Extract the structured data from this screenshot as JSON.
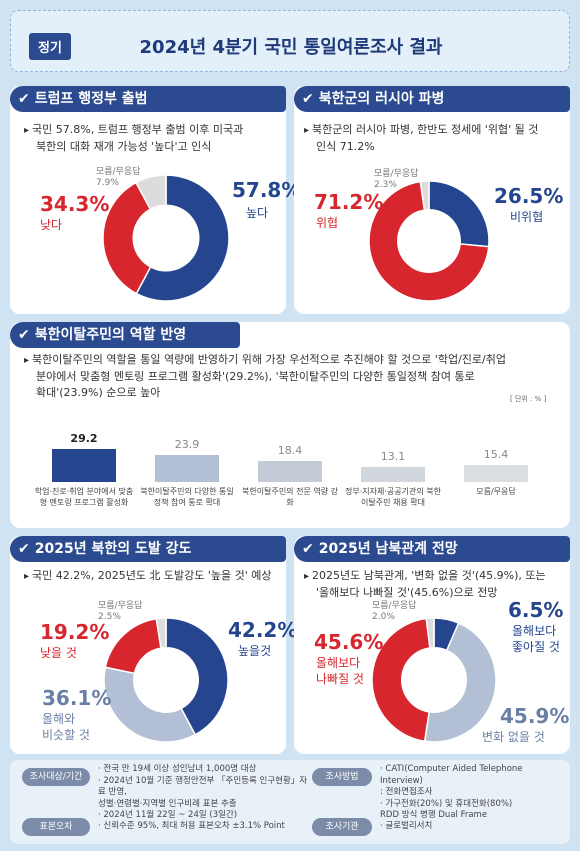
{
  "header": {
    "tag": "정기",
    "title": "2024년 4분기 국민 통일여론조사 결과"
  },
  "p1": {
    "title": "트럼프 행정부 출범",
    "bullet_line1": "국민 57.8%, 트럼프 행정부 출범 이후 미국과",
    "bullet_line2": "북한의 대화 재개 가능성 '높다'고 인식",
    "labels": {
      "high_pct": "57.8%",
      "high": "높다",
      "low_pct": "34.3%",
      "low": "낮다",
      "dk": "모름/무응답",
      "dk_pct": "7.9%"
    }
  },
  "p2": {
    "title": "북한군의 러시아 파병",
    "bullet_line1": "북한군의 러시아 파병, 한반도 정세에 '위협' 될 것",
    "bullet_line2": "인식 71.2%",
    "labels": {
      "threat_pct": "71.2%",
      "threat": "위협",
      "nothreat_pct": "26.5%",
      "nothreat": "비위협",
      "dk": "모름/무응답",
      "dk_pct": "2.3%"
    }
  },
  "p3": {
    "title": "북한이탈주민의 역할 반영",
    "bullet_line1": "북한이탈주민의 역할을 통일 역량에 반영하기 위해 가장 우선적으로 추진해야 할 것으로 '학업/진로/취업",
    "bullet_line2": "분야에서 맞춤형 멘토링 프로그램 활성화'(29.2%), '북한이탈주민의 다양한 통일정책 참여 통로",
    "bullet_line3": "확대'(23.9%) 순으로 높아",
    "unit": "[ 단위 : % ]"
  },
  "p4": {
    "title": "2025년 북한의 도발 강도",
    "bullet_line1": "국민 42.2%, 2025년도 北 도발강도 '높을 것' 예상",
    "labels": {
      "high_pct": "42.2%",
      "high": "높을것",
      "low_pct": "19.2%",
      "low": "낮을 것",
      "same_pct": "36.1%",
      "same1": "올해와",
      "same2": "비슷할 것",
      "dk": "모름/무응답",
      "dk_pct": "2.5%"
    }
  },
  "p5": {
    "title": "2025년 남북관계 전망",
    "bullet_line1": "2025년도 남북관계, '변화 없을 것'(45.9%), 또는",
    "bullet_line2": "'올해보다 나빠질 것'(45.6%)으로 전망",
    "labels": {
      "better_pct": "6.5%",
      "better1": "올해보다",
      "better2": "좋아질 것",
      "worse_pct": "45.6%",
      "worse1": "올해보다",
      "worse2": "나빠질 것",
      "same_pct": "45.9%",
      "same": "변화 없을 것",
      "dk": "모름/무응답",
      "dk_pct": "2.0%"
    }
  },
  "footer": {
    "target_label": "조사대상/기간",
    "target_line1": "· 전국 만 19세 이상 성인남녀 1,000명 대상",
    "target_line2": "· 2024년 10월 기준 행정안전부 「주민등록 인구현황」자료 반영,",
    "target_line3": "  성별·연령별·지역별 인구비례 표본 추출",
    "target_line4": "· 2024년 11월 22일 ~ 24일 (3일간)",
    "error_label": "표본오차",
    "error_text": "· 신뢰수준 95%, 최대 허용 표본오차 ±3.1% Point",
    "method_label": "조사방법",
    "method_line1": "· CATI(Computer Aided Telephone Interview)",
    "method_line2": "  : 전화면접조사",
    "method_line3": "· 가구전화(20%) 및 휴대전화(80%)",
    "method_line4": "  RDD 방식 병행 Dual Frame",
    "org_label": "조사기관",
    "org_text": "· 글로벌리서치"
  },
  "chart_data": [
    {
      "type": "pie",
      "title": "트럼프 행정부 출범",
      "slices": [
        {
          "name": "높다",
          "value": 57.8
        },
        {
          "name": "낮다",
          "value": 34.3
        },
        {
          "name": "모름/무응답",
          "value": 7.9
        }
      ],
      "colors": [
        "#25468f",
        "#d7262e",
        "#dcdcdc"
      ]
    },
    {
      "type": "pie",
      "title": "북한군의 러시아 파병",
      "slices": [
        {
          "name": "비위협",
          "value": 26.5
        },
        {
          "name": "위협",
          "value": 71.2
        },
        {
          "name": "모름/무응답",
          "value": 2.3
        }
      ],
      "colors": [
        "#25468f",
        "#d7262e",
        "#dcdcdc"
      ]
    },
    {
      "type": "bar",
      "title": "북한이탈주민의 역할 반영",
      "unit": "[ 단위 : % ]",
      "categories": [
        "학업·진로·취업 분야에서 맞춤형 멘토링 프로그램 활성화",
        "북한이탈주민의 다양한 통일정책 참여 통로 확대",
        "북한이탈주민의 전문 역량 강화",
        "정부·지자체·공공기관의 북한이탈주민 채용 확대",
        "모름/무응답"
      ],
      "values": [
        29.2,
        23.9,
        18.4,
        13.1,
        15.4
      ],
      "colors": [
        "#25468f",
        "#b3bfd4",
        "#c4cbd7",
        "#d2d6dd",
        "#dadde2"
      ]
    },
    {
      "type": "pie",
      "title": "2025년 북한의 도발 강도",
      "slices": [
        {
          "name": "높을것",
          "value": 42.2
        },
        {
          "name": "올해와 비슷할 것",
          "value": 36.1
        },
        {
          "name": "낮을 것",
          "value": 19.2
        },
        {
          "name": "모름/무응답",
          "value": 2.5
        }
      ],
      "colors": [
        "#25468f",
        "#b3bfd4",
        "#d7262e",
        "#dcdcdc"
      ]
    },
    {
      "type": "pie",
      "title": "2025년 남북관계 전망",
      "slices": [
        {
          "name": "올해보다 좋아질 것",
          "value": 6.5
        },
        {
          "name": "변화 없을 것",
          "value": 45.9
        },
        {
          "name": "올해보다 나빠질 것",
          "value": 45.6
        },
        {
          "name": "모름/무응답",
          "value": 2.0
        }
      ],
      "colors": [
        "#25468f",
        "#b3bfd4",
        "#d7262e",
        "#dcdcdc"
      ]
    }
  ]
}
